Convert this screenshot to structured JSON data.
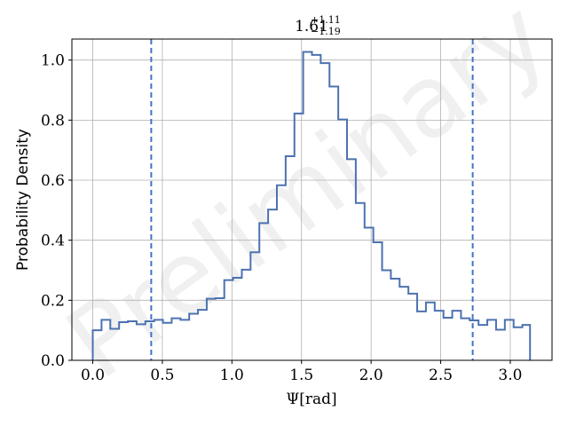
{
  "chart_data": {
    "type": "histogram",
    "title": {
      "value": "1.61",
      "upper": "+1.11",
      "lower": "−1.19"
    },
    "xlabel": "Ψ[rad]",
    "ylabel": "Probability Density",
    "watermark": "Preliminary",
    "xlim": [
      -0.15,
      3.3
    ],
    "ylim": [
      0,
      1.07
    ],
    "xticks": [
      0.0,
      0.5,
      1.0,
      1.5,
      2.0,
      2.5,
      3.0
    ],
    "xtick_labels": [
      "0.0",
      "0.5",
      "1.0",
      "1.5",
      "2.0",
      "2.5",
      "3.0"
    ],
    "yticks": [
      0.0,
      0.2,
      0.4,
      0.6,
      0.8,
      1.0
    ],
    "ytick_labels": [
      "0.0",
      "0.2",
      "0.4",
      "0.6",
      "0.8",
      "1.0"
    ],
    "grid": true,
    "bin_edges": [
      0.0,
      0.063,
      0.126,
      0.189,
      0.252,
      0.315,
      0.378,
      0.441,
      0.504,
      0.567,
      0.63,
      0.693,
      0.756,
      0.819,
      0.882,
      0.945,
      1.008,
      1.071,
      1.134,
      1.197,
      1.26,
      1.323,
      1.386,
      1.449,
      1.512,
      1.575,
      1.638,
      1.701,
      1.764,
      1.827,
      1.89,
      1.953,
      2.016,
      2.079,
      2.142,
      2.205,
      2.268,
      2.331,
      2.394,
      2.457,
      2.52,
      2.583,
      2.646,
      2.709,
      2.772,
      2.835,
      2.898,
      2.961,
      3.024,
      3.087,
      3.142
    ],
    "densities": [
      0.1,
      0.135,
      0.105,
      0.127,
      0.13,
      0.12,
      0.13,
      0.135,
      0.125,
      0.14,
      0.135,
      0.155,
      0.168,
      0.205,
      0.207,
      0.267,
      0.275,
      0.302,
      0.36,
      0.457,
      0.502,
      0.583,
      0.68,
      0.822,
      1.027,
      1.017,
      0.99,
      0.912,
      0.802,
      0.67,
      0.524,
      0.442,
      0.393,
      0.3,
      0.272,
      0.245,
      0.222,
      0.163,
      0.193,
      0.165,
      0.142,
      0.165,
      0.14,
      0.133,
      0.118,
      0.135,
      0.102,
      0.135,
      0.11,
      0.118
    ],
    "vlines": [
      0.42,
      2.73
    ],
    "colors": {
      "series": "#4c72b0",
      "vlines": "#4472c4",
      "grid": "#b0b0b0",
      "axes": "#000000",
      "watermark": "#bdbdbd"
    }
  }
}
